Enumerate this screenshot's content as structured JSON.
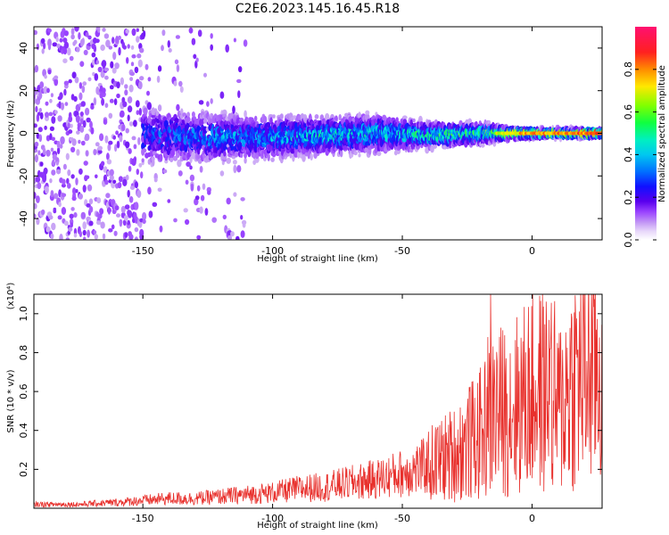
{
  "title": "C2E6.2023.145.16.45.R18",
  "colors": {
    "snr_line": "#e8302c",
    "background": "#ffffff",
    "axis": "#000000"
  },
  "chart_data": [
    {
      "type": "heatmap",
      "xlabel": "Height of straight line (km)",
      "ylabel": "Frequency (Hz)",
      "xlim": [
        -192,
        27
      ],
      "ylim": [
        -50,
        50
      ],
      "x_ticks": [
        -150,
        -100,
        -50,
        0
      ],
      "y_ticks": [
        -40,
        -20,
        0,
        20,
        40
      ],
      "colorbar": {
        "label": "Normalized spectral amplitude",
        "range": [
          0,
          1
        ],
        "ticks": [
          "0.0",
          "0.2",
          "0.4",
          "0.6",
          "0.8"
        ],
        "tick_values": [
          0,
          0.2,
          0.4,
          0.6,
          0.8
        ],
        "colormap": [
          "#e6d6f8",
          "#c7a2f5",
          "#9b45ff",
          "#5a00ee",
          "#0d18ff",
          "#0090ff",
          "#00e8e0",
          "#10ff60",
          "#8cff00",
          "#ffe800",
          "#ff8000",
          "#ff1a1a",
          "#ff1070"
        ]
      },
      "ridge": {
        "description_values": "signal concentrated near 0 Hz; spread widest at low heights, narrowing with height",
        "x": [
          -192,
          -160,
          -150,
          -120,
          -100,
          -80,
          -60,
          -40,
          -20,
          -10,
          0,
          27
        ],
        "half_width_hz": [
          50,
          50,
          14,
          11,
          10,
          9,
          9,
          6,
          5,
          3,
          2,
          2
        ],
        "center_hz": [
          0,
          0,
          -1,
          -2,
          -2,
          -1,
          0,
          -1,
          0,
          0,
          0,
          0
        ],
        "peak_amplitude": [
          0.25,
          0.3,
          0.35,
          0.45,
          0.45,
          0.5,
          0.5,
          0.55,
          0.6,
          0.75,
          0.8,
          0.85
        ]
      }
    },
    {
      "type": "line",
      "xlabel": "Height of straight line (km)",
      "ylabel": "SNR (10 * v/v)",
      "y_multiplier": "(x10⁴)",
      "xlim": [
        -192,
        27
      ],
      "ylim": [
        0,
        1.1
      ],
      "x_ticks": [
        -150,
        -100,
        -50,
        0
      ],
      "y_ticks": [
        0.2,
        0.4,
        0.6,
        0.8,
        1.0
      ],
      "y_tick_labels": [
        "0.2",
        "0.4",
        "0.6",
        "0.8",
        "1.0"
      ],
      "series": [
        {
          "x": [
            -192,
            -175,
            -160,
            -150,
            -140,
            -130,
            -120,
            -110,
            -100,
            -90,
            -80,
            -70,
            -60,
            -50,
            -40,
            -30,
            -25,
            -20,
            -16,
            -15,
            -12,
            -8,
            -4,
            0,
            5,
            8,
            10,
            15,
            20,
            27
          ],
          "y": [
            0.02,
            0.02,
            0.03,
            0.04,
            0.05,
            0.05,
            0.06,
            0.07,
            0.08,
            0.1,
            0.11,
            0.13,
            0.15,
            0.18,
            0.22,
            0.28,
            0.33,
            0.38,
            0.45,
            0.5,
            0.5,
            0.52,
            0.55,
            0.6,
            0.6,
            0.6,
            0.5,
            0.65,
            0.7,
            0.72
          ],
          "spikes": [
            {
              "x": -16,
              "y": 1.1
            },
            {
              "x": -17,
              "y": 0.88
            },
            {
              "x": -24,
              "y": 0.6
            },
            {
              "x": 7,
              "y": 0.82
            },
            {
              "x": 8,
              "y": 0.12
            },
            {
              "x": 27,
              "y": 0.85
            }
          ]
        }
      ]
    }
  ]
}
